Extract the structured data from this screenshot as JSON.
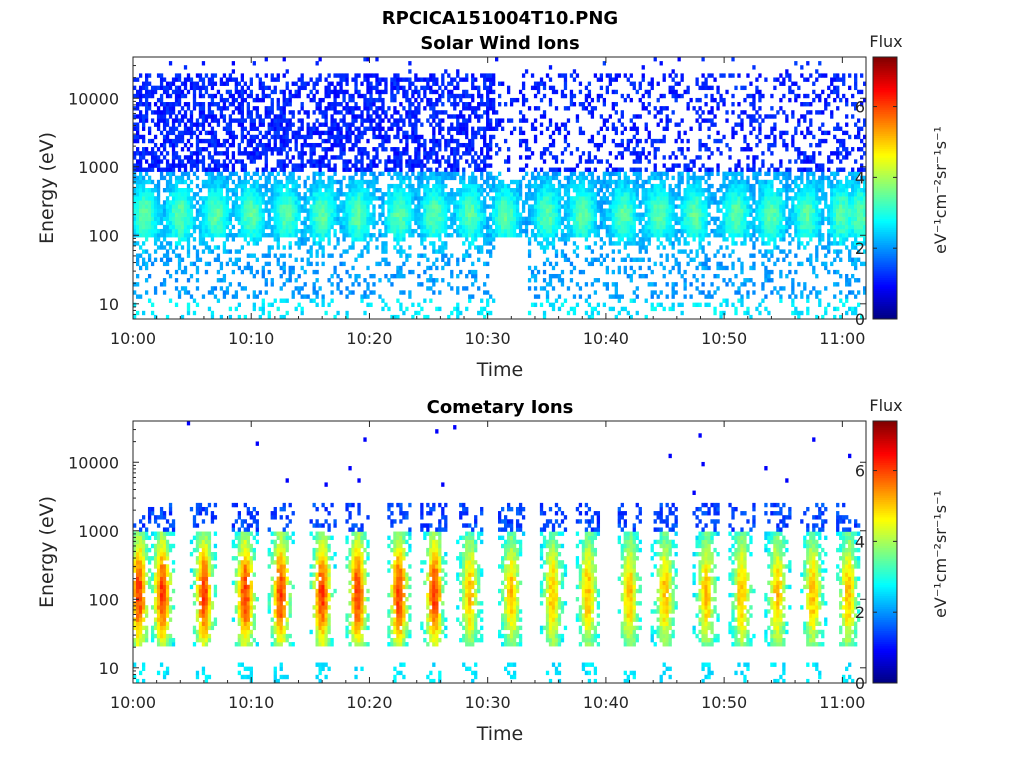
{
  "figure_title": "RPCICA151004T10.PNG",
  "chart_data": [
    {
      "type": "heatmap",
      "title": "Solar Wind Ions",
      "xlabel": "Time",
      "ylabel": "Energy (eV)",
      "xticks": [
        "10:00",
        "10:10",
        "10:20",
        "10:30",
        "10:40",
        "10:50",
        "11:00"
      ],
      "xlim_minutes": [
        0,
        62
      ],
      "yticks": [
        10,
        100,
        1000,
        10000
      ],
      "ylim_eV": [
        6,
        40000
      ],
      "yscale": "log",
      "colorbar": {
        "title": "Flux",
        "label": "eV⁻¹cm⁻²sr⁻¹s⁻¹",
        "ticks": [
          0,
          2,
          4,
          6
        ],
        "range": [
          0,
          7.4
        ],
        "colormap": "jet"
      },
      "features": {
        "data_gap_minutes": [
          30.5,
          33.5
        ],
        "beam_centers_minutes": [
          1,
          4,
          7,
          10,
          13,
          16,
          19,
          22.5,
          25.5,
          28.5,
          31.5,
          35,
          38,
          41.5,
          44.5,
          47.5,
          51,
          54,
          57,
          60,
          61.5
        ],
        "beam_energy_eV": 200,
        "max_flux_log": 3.3
      }
    },
    {
      "type": "heatmap",
      "title": "Cometary Ions",
      "xlabel": "Time",
      "ylabel": "Energy (eV)",
      "xticks": [
        "10:00",
        "10:10",
        "10:20",
        "10:30",
        "10:40",
        "10:50",
        "11:00"
      ],
      "xlim_minutes": [
        0,
        62
      ],
      "yticks": [
        10,
        100,
        1000,
        10000
      ],
      "ylim_eV": [
        6,
        40000
      ],
      "yscale": "log",
      "colorbar": {
        "title": "Flux",
        "label": "eV⁻¹cm⁻²sr⁻¹s⁻¹",
        "ticks": [
          0,
          2,
          4,
          6
        ],
        "range": [
          0,
          7.4
        ],
        "colormap": "jet"
      },
      "features": {
        "burst_centers_minutes": [
          0.5,
          2.5,
          6,
          9.5,
          12.5,
          16,
          19,
          22.5,
          25.5,
          28.5,
          32,
          35.5,
          38.5,
          42,
          45,
          48.5,
          51.5,
          54.5,
          57.5,
          60.5
        ],
        "peak_energy_eV": 120,
        "max_flux_log": 6.0
      }
    }
  ]
}
